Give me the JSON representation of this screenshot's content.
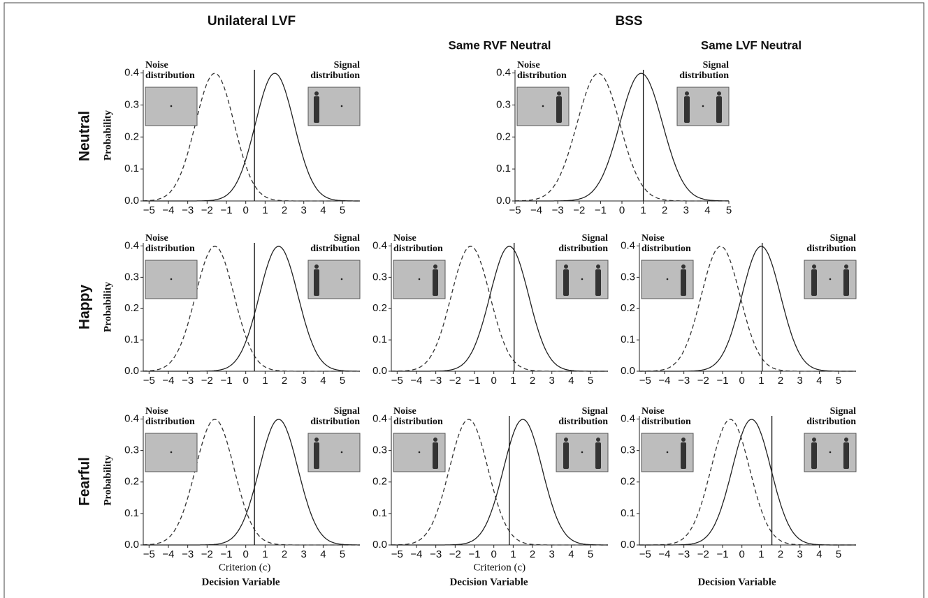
{
  "figure": {
    "columns": [
      "Unilateral LVF",
      "BSS"
    ],
    "subcolumns": [
      "Same RVF Neutral",
      "Same LVF Neutral"
    ],
    "rows": [
      "Neutral",
      "Happy",
      "Fearful"
    ]
  },
  "chart_data": [
    {
      "type": "line",
      "ylabel": "Probability",
      "xlim": [
        -5.3,
        5.9
      ],
      "ylim": [
        0,
        0.41
      ],
      "xticks": [
        {
          "value": -5,
          "label": "−5"
        },
        {
          "value": -4,
          "label": "−4"
        },
        {
          "value": -3,
          "label": "−3"
        },
        {
          "value": -2,
          "label": "−2"
        },
        {
          "value": -1,
          "label": "−1"
        },
        0,
        1,
        2,
        3,
        4,
        5
      ],
      "yticks": [
        {
          "value": 0,
          "label": "0.0"
        },
        0.1,
        0.2,
        0.3,
        0.4
      ],
      "criterion": 0.45,
      "series": [
        {
          "name": "Noise distribution",
          "mean": -1.6,
          "sd": 1,
          "dash": true,
          "color": "#333333"
        },
        {
          "name": "Signal distribution",
          "mean": 1.5,
          "sd": 1,
          "dash": false,
          "color": "#222222"
        }
      ]
    },
    {
      "type": "line",
      "xlim": [
        -5,
        5
      ],
      "ylim": [
        0,
        0.41
      ],
      "xticks": [
        {
          "value": -5,
          "label": "−5"
        },
        {
          "value": -4,
          "label": "−4"
        },
        {
          "value": -3,
          "label": "−3"
        },
        {
          "value": -2,
          "label": "−2"
        },
        {
          "value": -1,
          "label": "−1"
        },
        0,
        1,
        2,
        3,
        4,
        5
      ],
      "yticks": [
        {
          "value": 0,
          "label": "0.0"
        },
        0.1,
        0.2,
        0.3,
        0.4
      ],
      "criterion": 1.0,
      "series": [
        {
          "name": "Noise distribution",
          "mean": -1.1,
          "sd": 1,
          "dash": true,
          "color": "#333333"
        },
        {
          "name": "Signal distribution",
          "mean": 0.9,
          "sd": 1,
          "dash": false,
          "color": "#222222"
        }
      ]
    },
    {
      "type": "line",
      "ylabel": "Probability",
      "xlim": [
        -5.3,
        5.9
      ],
      "ylim": [
        0,
        0.41
      ],
      "xticks": [
        {
          "value": -5,
          "label": "−5"
        },
        {
          "value": -4,
          "label": "−4"
        },
        {
          "value": -3,
          "label": "−3"
        },
        {
          "value": -2,
          "label": "−2"
        },
        {
          "value": -1,
          "label": "−1"
        },
        0,
        1,
        2,
        3,
        4,
        5
      ],
      "yticks": [
        {
          "value": 0,
          "label": "0.0"
        },
        0.1,
        0.2,
        0.3,
        0.4
      ],
      "criterion": 0.45,
      "series": [
        {
          "name": "Noise distribution",
          "mean": -1.6,
          "sd": 1,
          "dash": true,
          "color": "#333333"
        },
        {
          "name": "Signal distribution",
          "mean": 1.7,
          "sd": 1,
          "dash": false,
          "color": "#222222"
        }
      ]
    },
    {
      "type": "line",
      "xlim": [
        -5.3,
        5.9
      ],
      "ylim": [
        0,
        0.41
      ],
      "xticks": [
        {
          "value": -5,
          "label": "−5"
        },
        {
          "value": -4,
          "label": "−4"
        },
        {
          "value": -3,
          "label": "−3"
        },
        {
          "value": -2,
          "label": "−2"
        },
        {
          "value": -1,
          "label": "−1"
        },
        0,
        1,
        2,
        3,
        4,
        5
      ],
      "yticks": [
        {
          "value": 0,
          "label": "0.0"
        },
        0.1,
        0.2,
        0.3,
        0.4
      ],
      "criterion": 1.05,
      "series": [
        {
          "name": "Noise distribution",
          "mean": -1.2,
          "sd": 1,
          "dash": true,
          "color": "#333333"
        },
        {
          "name": "Signal distribution",
          "mean": 0.8,
          "sd": 1,
          "dash": false,
          "color": "#222222"
        }
      ]
    },
    {
      "type": "line",
      "xlim": [
        -5.3,
        5.9
      ],
      "ylim": [
        0,
        0.41
      ],
      "xticks": [
        {
          "value": -5,
          "label": "−5"
        },
        {
          "value": -4,
          "label": "−4"
        },
        {
          "value": -3,
          "label": "−3"
        },
        {
          "value": -2,
          "label": "−2"
        },
        {
          "value": -1,
          "label": "−1"
        },
        0,
        1,
        2,
        3,
        4,
        5
      ],
      "yticks": [
        {
          "value": 0,
          "label": "0.0"
        },
        0.1,
        0.2,
        0.3,
        0.4
      ],
      "criterion": 1.05,
      "series": [
        {
          "name": "Noise distribution",
          "mean": -1.1,
          "sd": 1,
          "dash": true,
          "color": "#333333"
        },
        {
          "name": "Signal distribution",
          "mean": 1.0,
          "sd": 1,
          "dash": false,
          "color": "#222222"
        }
      ]
    },
    {
      "type": "line",
      "ylabel": "Probability",
      "criterion_label": "Criterion (c)",
      "xlabel": "Decision Variable",
      "xlim": [
        -5.3,
        5.9
      ],
      "ylim": [
        0,
        0.41
      ],
      "xticks": [
        {
          "value": -5,
          "label": "−5"
        },
        {
          "value": -4,
          "label": "−4"
        },
        {
          "value": -3,
          "label": "−3"
        },
        {
          "value": -2,
          "label": "−2"
        },
        {
          "value": -1,
          "label": "−1"
        },
        0,
        1,
        2,
        3,
        4,
        5
      ],
      "yticks": [
        {
          "value": 0,
          "label": "0.0"
        },
        0.1,
        0.2,
        0.3,
        0.4
      ],
      "criterion": 0.45,
      "series": [
        {
          "name": "Noise distribution",
          "mean": -1.6,
          "sd": 1,
          "dash": true,
          "color": "#333333"
        },
        {
          "name": "Signal distribution",
          "mean": 1.7,
          "sd": 1,
          "dash": false,
          "color": "#222222"
        }
      ]
    },
    {
      "type": "line",
      "criterion_label": "Criterion (c)",
      "xlabel": "Decision Variable",
      "xlim": [
        -5.3,
        5.9
      ],
      "ylim": [
        0,
        0.41
      ],
      "xticks": [
        {
          "value": -5,
          "label": "−5"
        },
        {
          "value": -4,
          "label": "−4"
        },
        {
          "value": -3,
          "label": "−3"
        },
        {
          "value": -2,
          "label": "−2"
        },
        {
          "value": -1,
          "label": "−1"
        },
        0,
        1,
        2,
        3,
        4,
        5
      ],
      "yticks": [
        {
          "value": 0,
          "label": "0.0"
        },
        0.1,
        0.2,
        0.3,
        0.4
      ],
      "criterion": 0.8,
      "series": [
        {
          "name": "Noise distribution",
          "mean": -1.3,
          "sd": 1,
          "dash": true,
          "color": "#333333"
        },
        {
          "name": "Signal distribution",
          "mean": 1.5,
          "sd": 1,
          "dash": false,
          "color": "#222222"
        }
      ]
    },
    {
      "type": "line",
      "xlabel": "Decision Variable",
      "xlim": [
        -5.3,
        5.9
      ],
      "ylim": [
        0,
        0.41
      ],
      "xticks": [
        {
          "value": -5,
          "label": "−5"
        },
        {
          "value": -4,
          "label": "−4"
        },
        {
          "value": -3,
          "label": "−3"
        },
        {
          "value": -2,
          "label": "−2"
        },
        {
          "value": -1,
          "label": "−1"
        },
        0,
        1,
        2,
        3,
        4,
        5
      ],
      "yticks": [
        {
          "value": 0,
          "label": "0.0"
        },
        0.1,
        0.2,
        0.3,
        0.4
      ],
      "criterion": 1.55,
      "series": [
        {
          "name": "Noise distribution",
          "mean": -0.6,
          "sd": 1,
          "dash": true,
          "color": "#333333"
        },
        {
          "name": "Signal distribution",
          "mean": 0.5,
          "sd": 1,
          "dash": false,
          "color": "#222222"
        }
      ]
    }
  ]
}
